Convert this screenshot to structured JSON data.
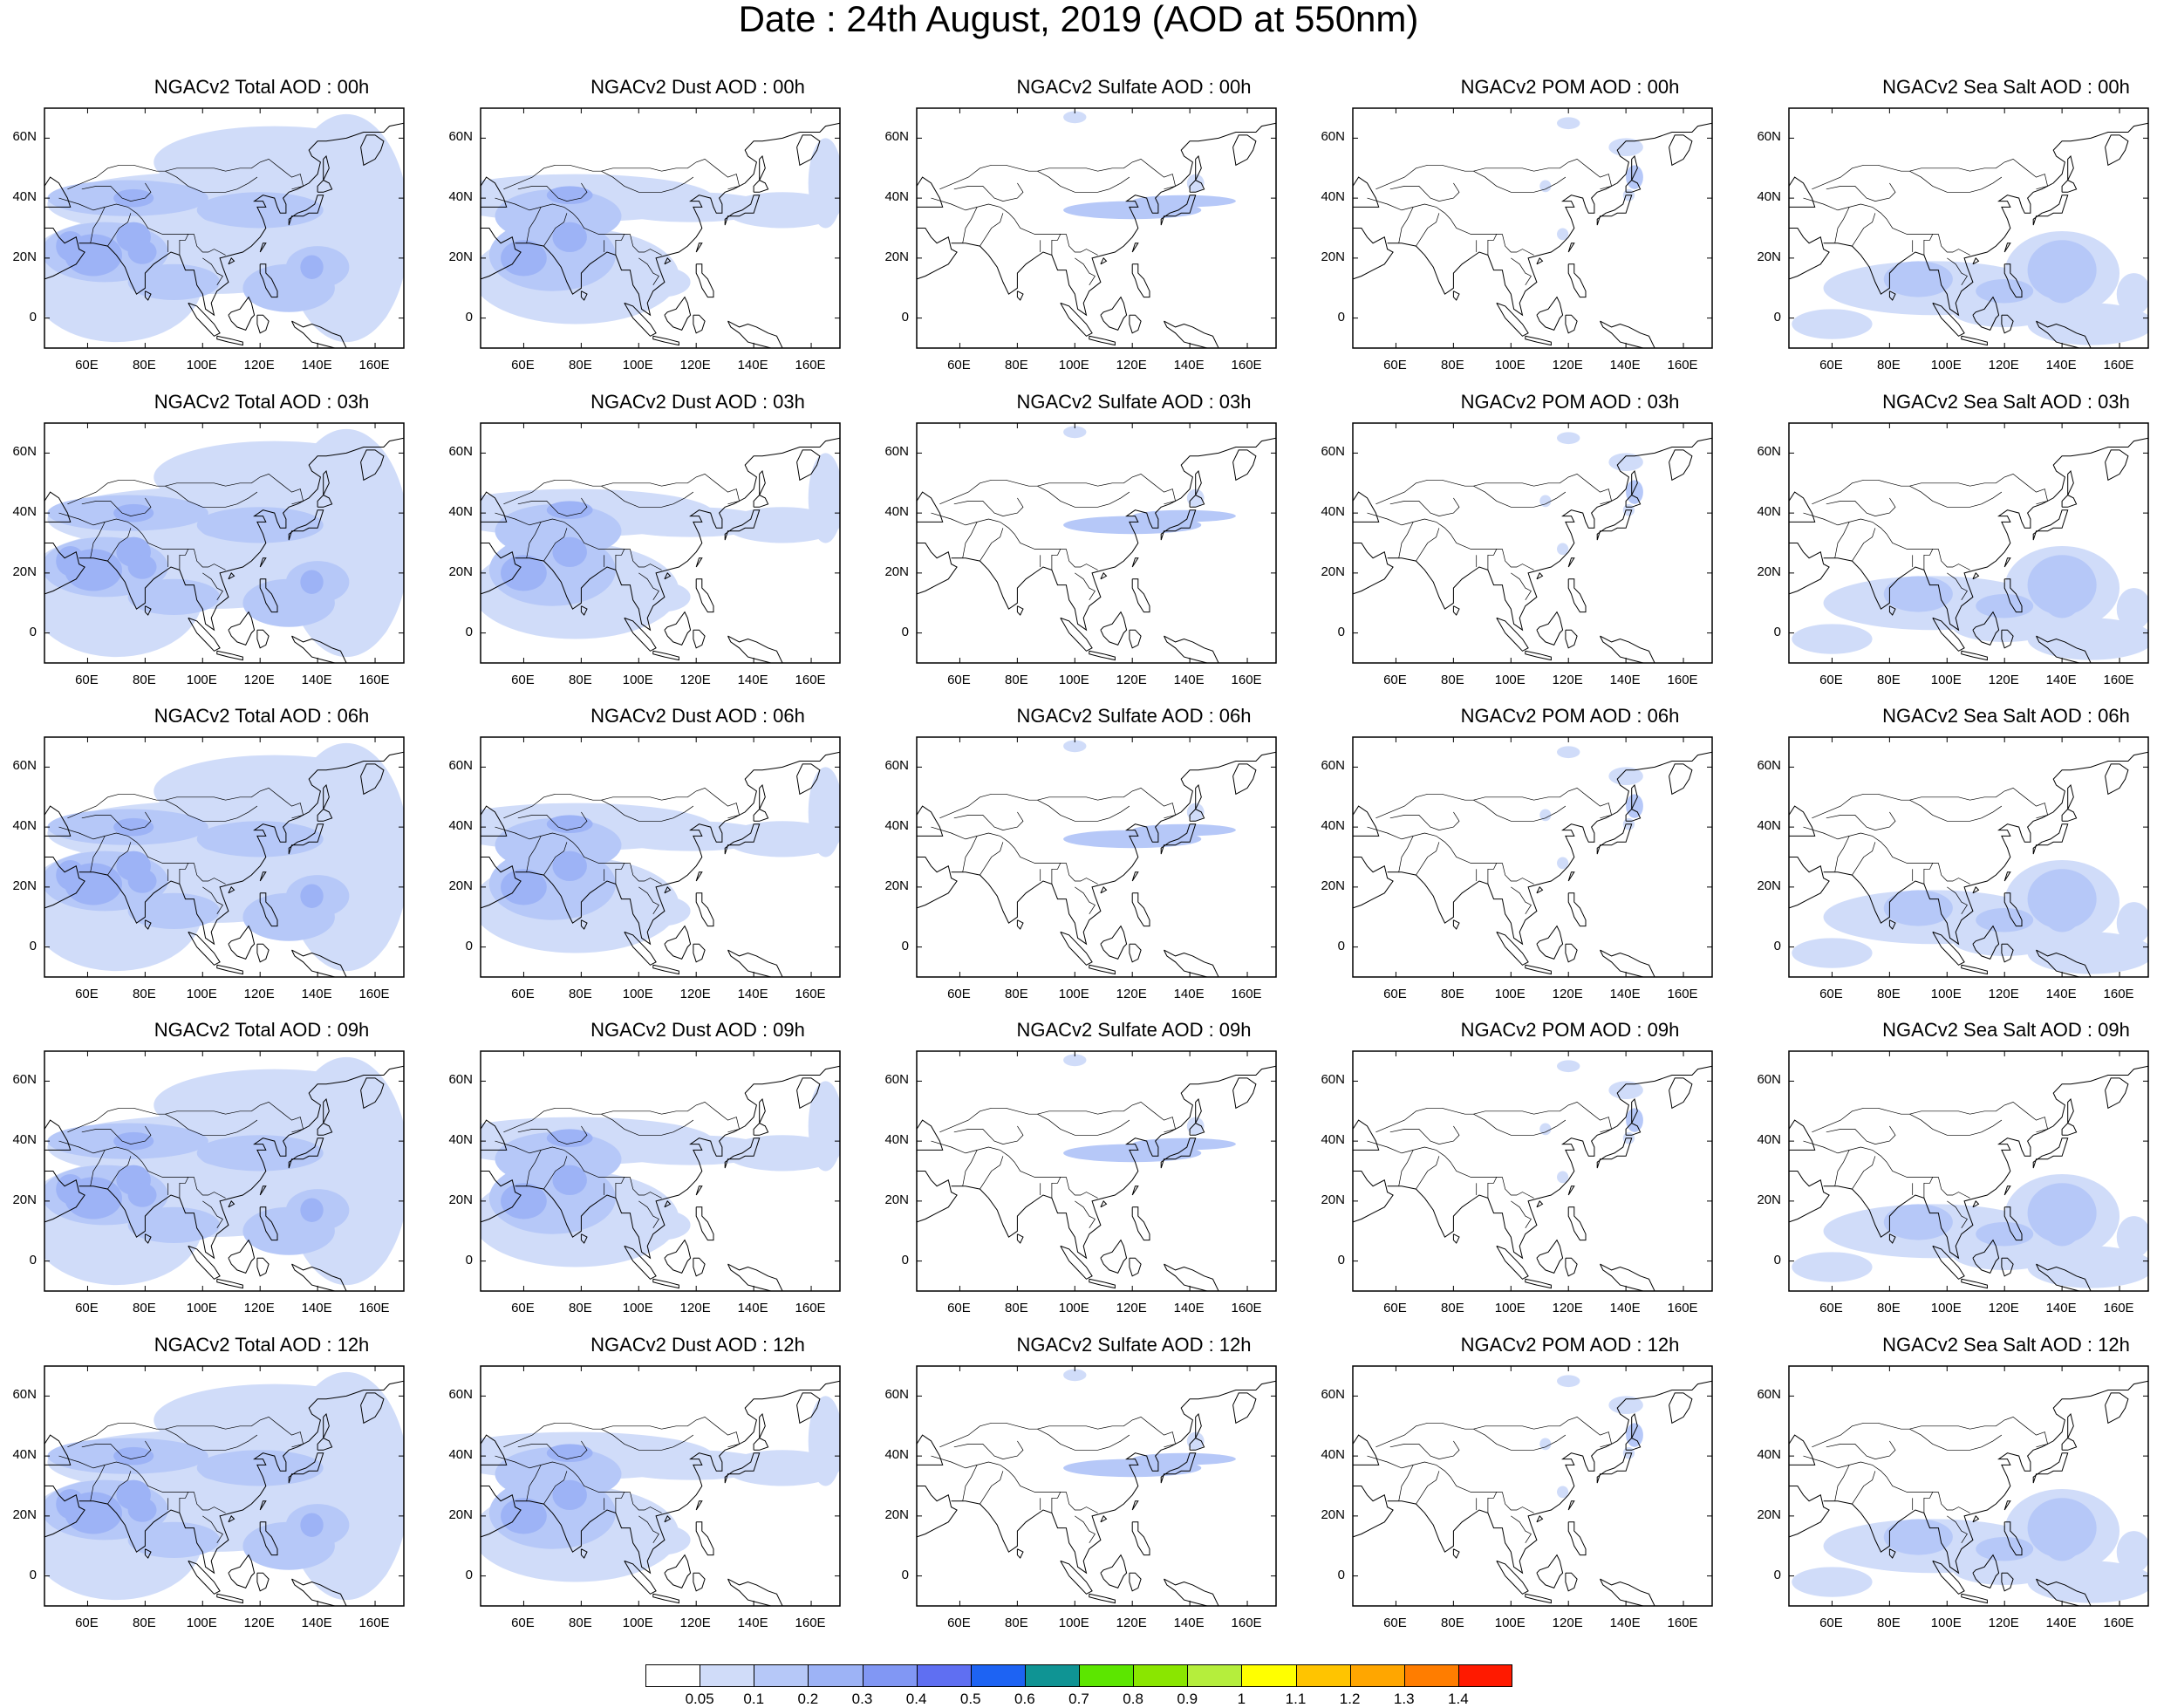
{
  "title": "Date : 24th August, 2019 (AOD at 550nm)",
  "axis": {
    "lon_ticks": [
      "60E",
      "80E",
      "100E",
      "120E",
      "140E",
      "160E"
    ],
    "lat_ticks": [
      "60N",
      "40N",
      "20N",
      "0"
    ]
  },
  "colors": {
    "coastline": "#000000",
    "levels": [
      "#ffffff",
      "#d0dcf9",
      "#b6c8f8",
      "#9db3f6",
      "#8197f4",
      "#5f6ff2",
      "#1d63f3",
      "#0f9494",
      "#5ce600",
      "#8ae600",
      "#b5ee3c",
      "#ffff00",
      "#ffc400",
      "#ffa600",
      "#ff7d00",
      "#ff1a00"
    ]
  },
  "colorbar": {
    "labels": [
      "0.05",
      "0.1",
      "0.2",
      "0.3",
      "0.4",
      "0.5",
      "0.6",
      "0.7",
      "0.8",
      "0.9",
      "1",
      "1.1",
      "1.2",
      "1.3",
      "1.4"
    ]
  },
  "panels": [
    {
      "title": "NGACv2 Total AOD : 00h",
      "species": "total"
    },
    {
      "title": "NGACv2 Dust AOD : 00h",
      "species": "dust"
    },
    {
      "title": "NGACv2 Sulfate AOD : 00h",
      "species": "sulfate"
    },
    {
      "title": "NGACv2 POM AOD : 00h",
      "species": "pom"
    },
    {
      "title": "NGACv2 Sea Salt AOD : 00h",
      "species": "seasalt"
    },
    {
      "title": "NGACv2 Total AOD : 03h",
      "species": "total"
    },
    {
      "title": "NGACv2 Dust AOD : 03h",
      "species": "dust"
    },
    {
      "title": "NGACv2 Sulfate AOD : 03h",
      "species": "sulfate"
    },
    {
      "title": "NGACv2 POM AOD : 03h",
      "species": "pom"
    },
    {
      "title": "NGACv2 Sea Salt AOD : 03h",
      "species": "seasalt"
    },
    {
      "title": "NGACv2 Total AOD : 06h",
      "species": "total"
    },
    {
      "title": "NGACv2 Dust AOD : 06h",
      "species": "dust"
    },
    {
      "title": "NGACv2 Sulfate AOD : 06h",
      "species": "sulfate"
    },
    {
      "title": "NGACv2 POM AOD : 06h",
      "species": "pom"
    },
    {
      "title": "NGACv2 Sea Salt AOD : 06h",
      "species": "seasalt"
    },
    {
      "title": "NGACv2 Total AOD : 09h",
      "species": "total"
    },
    {
      "title": "NGACv2 Dust AOD : 09h",
      "species": "dust"
    },
    {
      "title": "NGACv2 Sulfate AOD : 09h",
      "species": "sulfate"
    },
    {
      "title": "NGACv2 POM AOD : 09h",
      "species": "pom"
    },
    {
      "title": "NGACv2 Sea Salt  AOD : 09h",
      "species": "seasalt"
    },
    {
      "title": "NGACv2 Total AOD  : 12h",
      "species": "total"
    },
    {
      "title": "NGACv2 Dust AOD : 12h",
      "species": "dust"
    },
    {
      "title": "NGACv2 Sulfate AOD : 12h",
      "species": "sulfate"
    },
    {
      "title": "NGACv2 POM  AOD : 12h",
      "species": "pom"
    },
    {
      "title": "NGACv2 Sea Salt  AOD : 12h",
      "species": "seasalt"
    }
  ]
}
